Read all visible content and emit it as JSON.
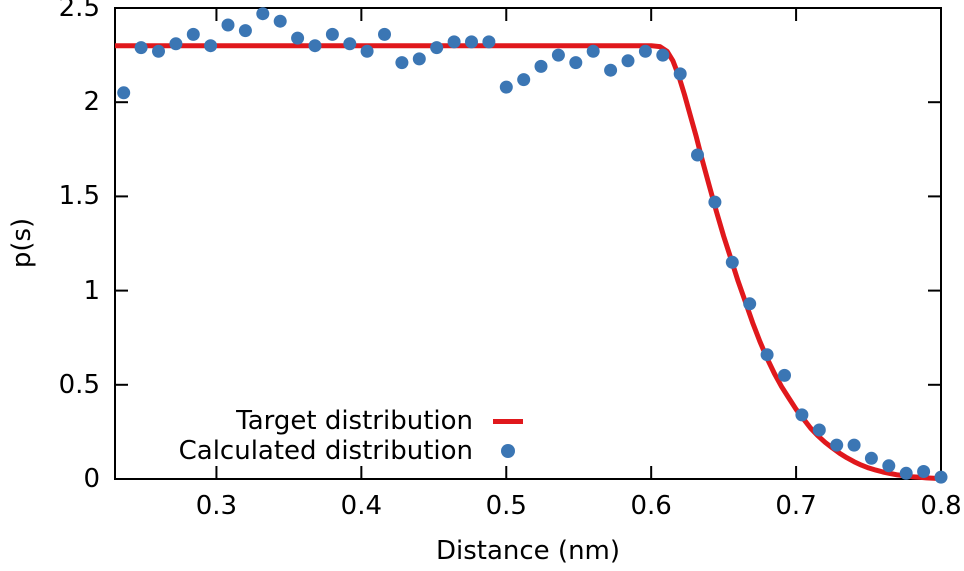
{
  "chart_data": {
    "type": "scatter",
    "title": "",
    "xlabel": "Distance (nm)",
    "ylabel": "p(s)",
    "xlim": [
      0.23,
      0.8
    ],
    "ylim": [
      0,
      2.5
    ],
    "grid": false,
    "legend_position": "inside-bottom-left",
    "axis_color": "#000000",
    "x_ticks": [
      {
        "value": 0.3,
        "label": "0.3"
      },
      {
        "value": 0.4,
        "label": "0.4"
      },
      {
        "value": 0.5,
        "label": "0.5"
      },
      {
        "value": 0.6,
        "label": "0.6"
      },
      {
        "value": 0.7,
        "label": "0.7"
      },
      {
        "value": 0.8,
        "label": "0.8"
      }
    ],
    "y_ticks": [
      {
        "value": 0,
        "label": "0"
      },
      {
        "value": 0.5,
        "label": "0.5"
      },
      {
        "value": 1,
        "label": "1"
      },
      {
        "value": 1.5,
        "label": "1.5"
      },
      {
        "value": 2,
        "label": "2"
      },
      {
        "value": 2.5,
        "label": "2.5"
      }
    ],
    "series": [
      {
        "name": "Target distribution",
        "type": "line",
        "color": "#e0181c",
        "line_width": 5,
        "points": [
          [
            0.23,
            2.3
          ],
          [
            0.6,
            2.3
          ],
          [
            0.606,
            2.295
          ],
          [
            0.611,
            2.27
          ],
          [
            0.615,
            2.22
          ],
          [
            0.619,
            2.14
          ],
          [
            0.623,
            2.04
          ],
          [
            0.627,
            1.93
          ],
          [
            0.631,
            1.82
          ],
          [
            0.635,
            1.7
          ],
          [
            0.64,
            1.56
          ],
          [
            0.645,
            1.42
          ],
          [
            0.65,
            1.29
          ],
          [
            0.655,
            1.17
          ],
          [
            0.66,
            1.05
          ],
          [
            0.665,
            0.94
          ],
          [
            0.67,
            0.83
          ],
          [
            0.675,
            0.73
          ],
          [
            0.68,
            0.64
          ],
          [
            0.685,
            0.56
          ],
          [
            0.69,
            0.49
          ],
          [
            0.695,
            0.43
          ],
          [
            0.7,
            0.37
          ],
          [
            0.705,
            0.32
          ],
          [
            0.71,
            0.27
          ],
          [
            0.715,
            0.23
          ],
          [
            0.72,
            0.195
          ],
          [
            0.725,
            0.165
          ],
          [
            0.73,
            0.137
          ],
          [
            0.735,
            0.113
          ],
          [
            0.74,
            0.092
          ],
          [
            0.745,
            0.074
          ],
          [
            0.75,
            0.059
          ],
          [
            0.755,
            0.047
          ],
          [
            0.76,
            0.037
          ],
          [
            0.765,
            0.029
          ],
          [
            0.77,
            0.022
          ],
          [
            0.775,
            0.017
          ],
          [
            0.78,
            0.012
          ],
          [
            0.785,
            0.009
          ],
          [
            0.79,
            0.006
          ],
          [
            0.795,
            0.004
          ],
          [
            0.8,
            0.002
          ]
        ]
      },
      {
        "name": "Calculated distribution",
        "type": "scatter",
        "color": "#3b76b4",
        "marker_radius": 6.5,
        "points": [
          [
            0.236,
            2.05
          ],
          [
            0.248,
            2.29
          ],
          [
            0.26,
            2.27
          ],
          [
            0.272,
            2.31
          ],
          [
            0.284,
            2.36
          ],
          [
            0.296,
            2.3
          ],
          [
            0.308,
            2.41
          ],
          [
            0.32,
            2.38
          ],
          [
            0.332,
            2.47
          ],
          [
            0.344,
            2.43
          ],
          [
            0.356,
            2.34
          ],
          [
            0.368,
            2.3
          ],
          [
            0.38,
            2.36
          ],
          [
            0.392,
            2.31
          ],
          [
            0.404,
            2.27
          ],
          [
            0.416,
            2.36
          ],
          [
            0.428,
            2.21
          ],
          [
            0.44,
            2.23
          ],
          [
            0.452,
            2.29
          ],
          [
            0.464,
            2.32
          ],
          [
            0.476,
            2.32
          ],
          [
            0.488,
            2.32
          ],
          [
            0.5,
            2.08
          ],
          [
            0.512,
            2.12
          ],
          [
            0.524,
            2.19
          ],
          [
            0.536,
            2.25
          ],
          [
            0.548,
            2.21
          ],
          [
            0.56,
            2.27
          ],
          [
            0.572,
            2.17
          ],
          [
            0.584,
            2.22
          ],
          [
            0.596,
            2.27
          ],
          [
            0.608,
            2.25
          ],
          [
            0.62,
            2.15
          ],
          [
            0.632,
            1.72
          ],
          [
            0.644,
            1.47
          ],
          [
            0.656,
            1.15
          ],
          [
            0.668,
            0.93
          ],
          [
            0.68,
            0.66
          ],
          [
            0.692,
            0.55
          ],
          [
            0.704,
            0.34
          ],
          [
            0.716,
            0.26
          ],
          [
            0.728,
            0.18
          ],
          [
            0.74,
            0.18
          ],
          [
            0.752,
            0.11
          ],
          [
            0.764,
            0.07
          ],
          [
            0.776,
            0.03
          ],
          [
            0.788,
            0.04
          ],
          [
            0.8,
            0.01
          ]
        ]
      }
    ]
  }
}
